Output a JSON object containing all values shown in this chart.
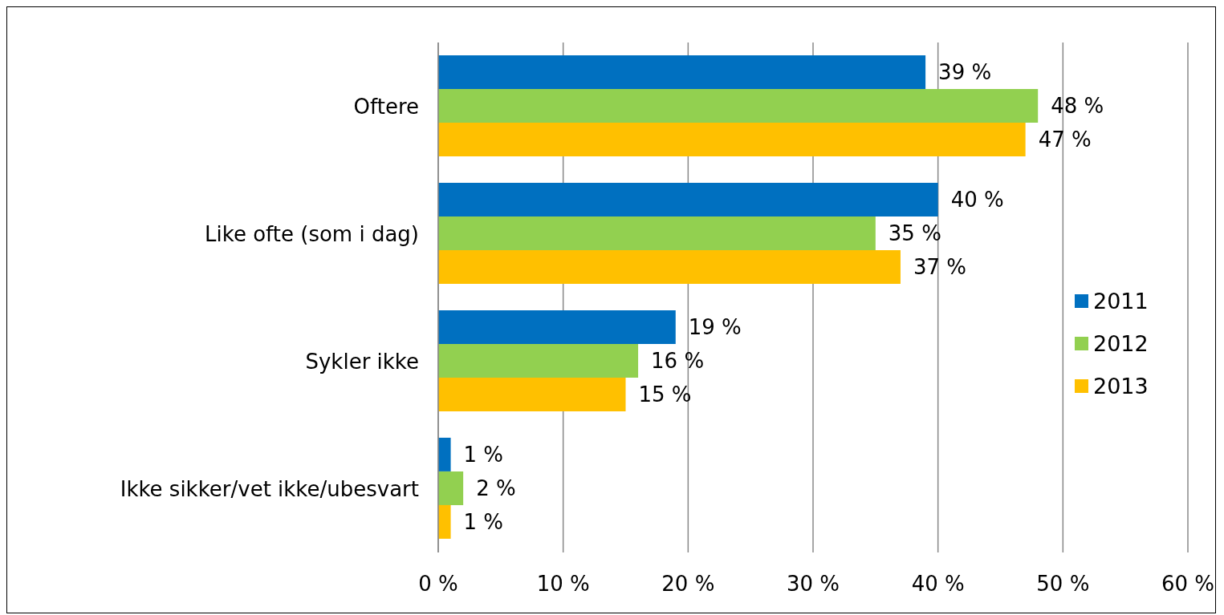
{
  "chart_data": {
    "type": "bar",
    "orientation": "horizontal",
    "categories": [
      "Oftere",
      "Like ofte (som i dag)",
      "Sykler ikke",
      "Ikke sikker/vet ikke/ubesvart"
    ],
    "series": [
      {
        "name": "2011",
        "color": "#0070c0",
        "values": [
          39,
          40,
          19,
          1
        ],
        "value_labels": [
          "39 %",
          "40 %",
          "19 %",
          "1 %"
        ]
      },
      {
        "name": "2012",
        "color": "#92d050",
        "values": [
          48,
          35,
          16,
          2
        ],
        "value_labels": [
          "48 %",
          "35 %",
          "16 %",
          "2 %"
        ]
      },
      {
        "name": "2013",
        "color": "#ffc000",
        "values": [
          47,
          37,
          15,
          1
        ],
        "value_labels": [
          "47 %",
          "37 %",
          "15 %",
          "1 %"
        ]
      }
    ],
    "xlim": [
      0,
      60
    ],
    "xticks": [
      {
        "value": 0,
        "label": "0 %"
      },
      {
        "value": 10,
        "label": "10 %"
      },
      {
        "value": 20,
        "label": "20 %"
      },
      {
        "value": 30,
        "label": "30 %"
      },
      {
        "value": 40,
        "label": "40 %"
      },
      {
        "value": 50,
        "label": "50 %"
      },
      {
        "value": 60,
        "label": "60 %"
      }
    ],
    "grid": "x",
    "legend": "right"
  }
}
